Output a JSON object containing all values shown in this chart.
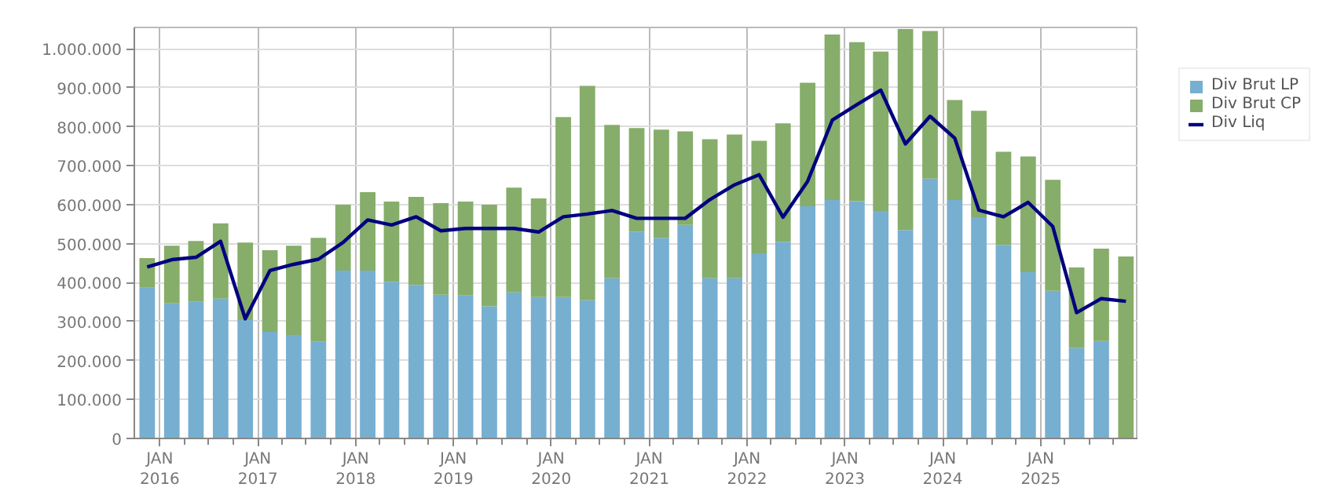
{
  "chart_data": {
    "type": "bar",
    "stacked": true,
    "x": [
      "2015-11-15",
      "2016-02-15",
      "2016-05-15",
      "2016-08-15",
      "2016-11-15",
      "2017-02-15",
      "2017-05-15",
      "2017-08-15",
      "2017-11-15",
      "2018-02-15",
      "2018-05-15",
      "2018-08-15",
      "2018-11-15",
      "2019-02-15",
      "2019-05-15",
      "2019-08-15",
      "2019-11-15",
      "2020-02-15",
      "2020-05-15",
      "2020-08-15",
      "2020-11-15",
      "2021-02-15",
      "2021-05-15",
      "2021-08-15",
      "2021-11-15",
      "2022-02-15",
      "2022-05-15",
      "2022-08-15",
      "2022-11-15",
      "2023-02-15",
      "2023-05-15",
      "2023-08-15",
      "2023-11-15",
      "2024-02-15",
      "2024-05-15",
      "2024-08-15",
      "2024-11-15",
      "2025-02-15",
      "2025-05-15",
      "2025-08-15",
      "2025-11-15"
    ],
    "series": [
      {
        "name": "Div Brut LP",
        "color": "#77afd1",
        "values": [
          387000,
          347000,
          351000,
          359000,
          304000,
          274000,
          266000,
          248000,
          431000,
          431000,
          402000,
          394000,
          369000,
          367000,
          339000,
          375000,
          363000,
          363000,
          355000,
          411000,
          531000,
          515000,
          548000,
          411000,
          411000,
          475000,
          505000,
          596000,
          612000,
          609000,
          584000,
          535000,
          667000,
          612000,
          568000,
          497000,
          427000,
          379000,
          232000,
          250000,
          null
        ]
      },
      {
        "name": "Div Brut CP",
        "color": "#86ad6a",
        "values": [
          76000,
          148000,
          156000,
          193000,
          199000,
          209000,
          229000,
          267000,
          169000,
          201000,
          206000,
          226000,
          235000,
          241000,
          261000,
          269000,
          253000,
          462000,
          550000,
          394000,
          266000,
          278000,
          240000,
          357000,
          369000,
          289000,
          304000,
          317000,
          425000,
          408000,
          409000,
          516000,
          379000,
          257000,
          273000,
          239000,
          297000,
          285000,
          207000,
          237000,
          467000
        ]
      },
      {
        "name": "Div Liq",
        "type": "line",
        "color": "#000080",
        "values": [
          440000,
          459000,
          465000,
          506000,
          307000,
          431000,
          447000,
          460000,
          503000,
          561000,
          548000,
          569000,
          533000,
          539000,
          539000,
          539000,
          530000,
          569000,
          576000,
          585000,
          565000,
          565000,
          565000,
          613000,
          651000,
          677000,
          568000,
          660000,
          817000,
          857000,
          894000,
          756000,
          827000,
          771000,
          586000,
          569000,
          606000,
          544000,
          323000,
          359000,
          352000
        ]
      }
    ],
    "xlim": [
      "2015-09-28",
      "2025-12-31"
    ],
    "xticks": [
      {
        "value": "2016-01-01",
        "label": "JAN\n2016"
      },
      {
        "value": "2016-04-01",
        "label": null
      },
      {
        "value": "2016-07-01",
        "label": null
      },
      {
        "value": "2016-10-01",
        "label": null
      },
      {
        "value": "2017-01-01",
        "label": "JAN\n2017"
      },
      {
        "value": "2017-04-01",
        "label": null
      },
      {
        "value": "2017-07-01",
        "label": null
      },
      {
        "value": "2017-10-01",
        "label": null
      },
      {
        "value": "2018-01-01",
        "label": "JAN\n2018"
      },
      {
        "value": "2018-04-01",
        "label": null
      },
      {
        "value": "2018-07-01",
        "label": null
      },
      {
        "value": "2018-10-01",
        "label": null
      },
      {
        "value": "2019-01-01",
        "label": "JAN\n2019"
      },
      {
        "value": "2019-04-01",
        "label": null
      },
      {
        "value": "2019-07-01",
        "label": null
      },
      {
        "value": "2019-10-01",
        "label": null
      },
      {
        "value": "2020-01-01",
        "label": "JAN\n2020"
      },
      {
        "value": "2020-04-01",
        "label": null
      },
      {
        "value": "2020-07-01",
        "label": null
      },
      {
        "value": "2020-10-01",
        "label": null
      },
      {
        "value": "2021-01-01",
        "label": "JAN\n2021"
      },
      {
        "value": "2021-04-01",
        "label": null
      },
      {
        "value": "2021-07-01",
        "label": null
      },
      {
        "value": "2021-10-01",
        "label": null
      },
      {
        "value": "2022-01-01",
        "label": "JAN\n2022"
      },
      {
        "value": "2022-04-01",
        "label": null
      },
      {
        "value": "2022-07-01",
        "label": null
      },
      {
        "value": "2022-10-01",
        "label": null
      },
      {
        "value": "2023-01-01",
        "label": "JAN\n2023"
      },
      {
        "value": "2023-04-01",
        "label": null
      },
      {
        "value": "2023-07-01",
        "label": null
      },
      {
        "value": "2023-10-01",
        "label": null
      },
      {
        "value": "2024-01-01",
        "label": "JAN\n2024"
      },
      {
        "value": "2024-04-01",
        "label": null
      },
      {
        "value": "2024-07-01",
        "label": null
      },
      {
        "value": "2024-10-01",
        "label": null
      },
      {
        "value": "2025-01-01",
        "label": "JAN\n2025"
      },
      {
        "value": "2025-04-01",
        "label": null
      },
      {
        "value": "2025-07-01",
        "label": null
      },
      {
        "value": "2025-10-01",
        "label": null
      }
    ],
    "ylim": [
      0,
      1055000
    ],
    "yticks": [
      0,
      {
        "value": 100000,
        "label": "100.000"
      },
      {
        "value": 200000,
        "label": "200.000"
      },
      {
        "value": 300000,
        "label": "300.000"
      },
      {
        "value": 400000,
        "label": "400.000"
      },
      {
        "value": 500000,
        "label": "500.000"
      },
      {
        "value": 600000,
        "label": "600.000"
      },
      {
        "value": 700000,
        "label": "700.000"
      },
      {
        "value": 800000,
        "label": "800.000"
      },
      {
        "value": 900000,
        "label": "900.000"
      },
      {
        "value": 1000000,
        "label": "1.000.000"
      }
    ],
    "grid": true,
    "legend": "right"
  }
}
